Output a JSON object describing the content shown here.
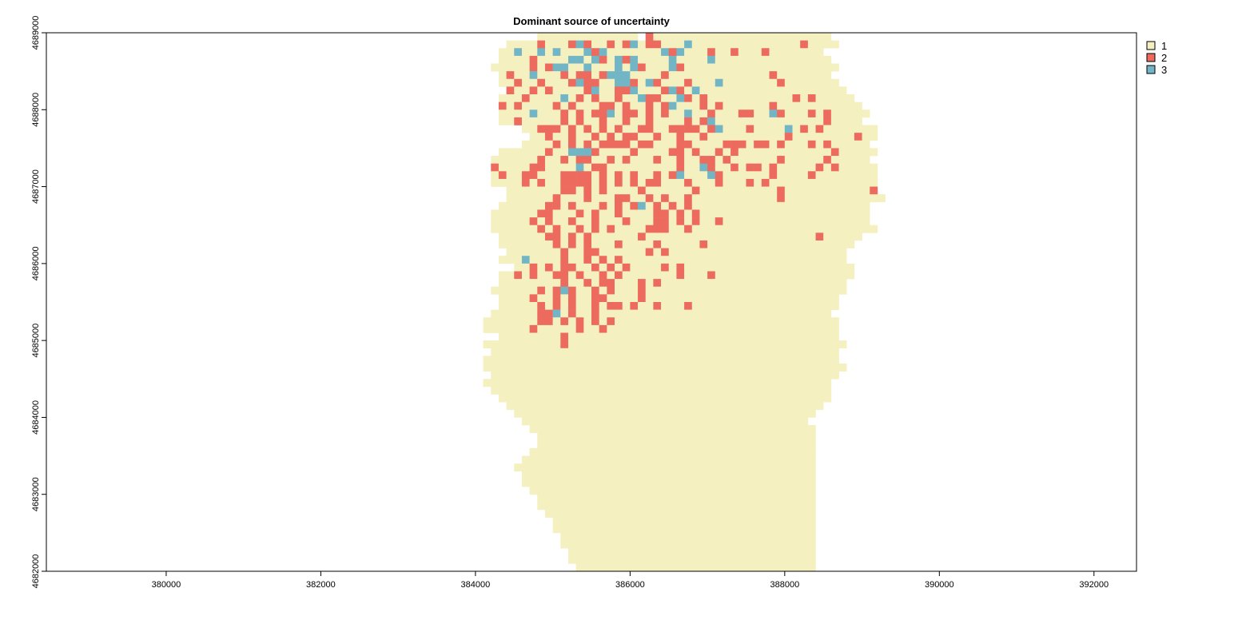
{
  "chart_data": {
    "type": "heatmap",
    "title": "Dominant source of uncertainty",
    "xlabel": "",
    "ylabel": "",
    "x_ticks": [
      380000,
      382000,
      384000,
      386000,
      388000,
      390000,
      392000
    ],
    "y_ticks": [
      4682000,
      4683000,
      4684000,
      4685000,
      4686000,
      4687000,
      4688000,
      4689000
    ],
    "xlim": [
      378450,
      392550
    ],
    "ylim": [
      4682000,
      4689000
    ],
    "cell_size": 100,
    "legend_position": "top-right",
    "classes": [
      {
        "value": 1,
        "label": "1",
        "color": "#F4F0C0"
      },
      {
        "value": 2,
        "label": "2",
        "color": "#EC6B5E"
      },
      {
        "value": 3,
        "label": "3",
        "color": "#72B6C6"
      }
    ],
    "grid_origin": {
      "x": 382800,
      "y": 4682000
    },
    "rows": [
      "....................1111111111111.211111111111111111111111.....",
      "................1111211123211212312211131111111111111121111....",
      "...............113113131113231111111323111211211121111111.....",
      "...............1111211113313213231111311113111111111111111.....",
      "..............111112123311311131321113211111111111111111111....",
      "...............1211311121221233311112111111111111121111111.....",
      "...............11211211123221133213211121113111111121111111....",
      "................21121211112311223111232131111111111111111111...",
      "...............1112111131212112113221132121111111111121211111..",
      "...............21211112121112212112123111212111111211111111111.",
      "...............111131112121223122121211311211122113211121211111",
      "...............11211111212112112112111121231111111111111121111.",
      "..................1122212121212112211222212311121111312121111111",
      "...................112112112121221121121121111111111211111111211",
      "..................111121212122221221112211112221221211121211111.",
      "...............1111112113332111121111221211212111111111111211111",
      "..............1111112112122112121112112112212111111211111211111.",
      "..............21111221111312211111111121132112122121111121211111",
      "..............12112211122221212121121231113211111121111211111111",
      "..............11112121122221212121221112111211121211111111111111",
      "................111111122121211112111111211111111112111111111112",
      "................1111112111211122112121121111111111121111111111111",
      "...............111111221211121212312121211111111111111111111111",
      "..............1111112211121211211112212121111111111111111111111.",
      "..............1111121211211211121112212121121111111111111111111..",
      "..............11111121211212121111222112111111111111111111111111",
      "...............11111122121211111121111111111111111111111211111",
      "...............1111111212121112111121111121111111111111111111..",
      "................11111112112211111121211111111111111111111111....",
      "...............111311112112121211111111111111111111111111111...",
      ".................11212122112121211112121111111111111111111111...",
      "...............1121211221211212111111121112111111111111111111...",
      "...............111111112112122111212111111111111111111111111....",
      "..............1111112123211212111211111111111111111111111111....",
      "...............11112112121122111121111111111111111111111111.....",
      "...............11111212121121221211211121111111111111111111.....",
      "..............11111122312112111111111111111111111111111111......",
      ".............1111111221212121211111111111111111111111111111.....",
      ".............1111112111112112111111111111111111111111111111.....",
      "...............11111111211111111111111111111111111111111111.....",
      ".............11111111112111111111111111111111111111111111111....",
      "..............111111111111111111111111111111111111111111111.....",
      ".............1111111111111111111111111111111111111111111111.....",
      ".............11111111111111111111111111111111111111111111111....",
      "..............111111111111111111111111111111111111111111111.....",
      ".............111111111111111111111111111111111111111111111......",
      "..............11111111111111111111111111111111111111111111......",
      "...............1111111111111111111111111111111111111111111......",
      "................11111111111111111111111111111111111111111.......",
      ".................111111111111111111111111111111111111111........",
      "..................1111111111111111111111111111111111111.........",
      "...................1111111111111111111111111111111111111........",
      "....................111111111111111111111111111111111111........",
      "....................111111111111111111111111111111111111........",
      "...................1111111111111111111111111111111111111........",
      "..................11111111111111111111111111111111111111........",
      ".................111111111111111111111111111111111111111........",
      "..................11111111111111111111111111111111111111........",
      "..................11111111111111111111111111111111111111........",
      "...................1111111111111111111111111111111111111........",
      "....................111111111111111111111111111111111111........",
      "....................111111111111111111111111111111111111........",
      ".....................11111111111111111111111111111111111........",
      "......................1111111111111111111111111111111111........",
      "......................1111111111111111111111111111111111........",
      ".......................111111111111111111111111111111111........",
      ".......................111111111111111111111111111111111........",
      "........................11111111111111111111111111111111........",
      "........................11111111111111111111111111111111........",
      ".........................1111111111111111111111111111111........"
    ]
  }
}
